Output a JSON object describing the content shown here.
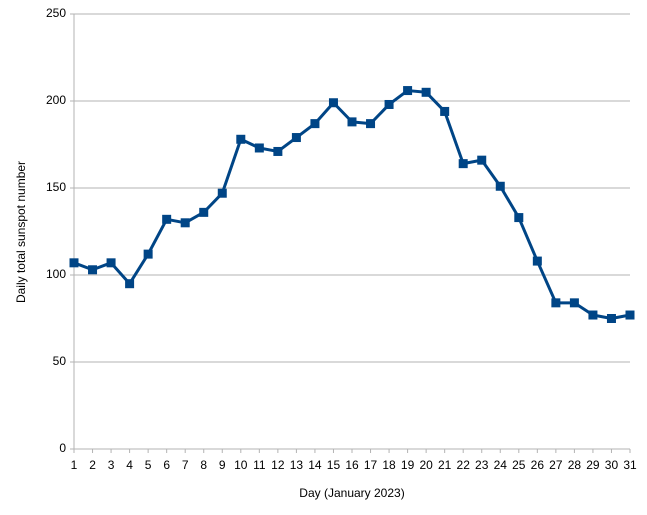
{
  "chart_data": {
    "type": "line",
    "x_label": "Day (January 2023)",
    "y_label": "Daily total sunspot number",
    "x": [
      1,
      2,
      3,
      4,
      5,
      6,
      7,
      8,
      9,
      10,
      11,
      12,
      13,
      14,
      15,
      16,
      17,
      18,
      19,
      20,
      21,
      22,
      23,
      24,
      25,
      26,
      27,
      28,
      29,
      30,
      31
    ],
    "series": [
      {
        "name": "Daily total sunspot number",
        "color": "#004586",
        "values": [
          107,
          103,
          107,
          95,
          112,
          132,
          130,
          136,
          147,
          178,
          173,
          171,
          179,
          187,
          199,
          188,
          187,
          198,
          206,
          205,
          194,
          164,
          166,
          151,
          133,
          108,
          84,
          84,
          77,
          75,
          77
        ]
      }
    ],
    "xlim": [
      1,
      31
    ],
    "xticks": [
      1,
      2,
      3,
      4,
      5,
      6,
      7,
      8,
      9,
      10,
      11,
      12,
      13,
      14,
      15,
      16,
      17,
      18,
      19,
      20,
      21,
      22,
      23,
      24,
      25,
      26,
      27,
      28,
      29,
      30,
      31
    ],
    "ylim": [
      0,
      250
    ],
    "yticks": [
      0,
      50,
      100,
      150,
      200,
      250
    ],
    "grid": true
  }
}
